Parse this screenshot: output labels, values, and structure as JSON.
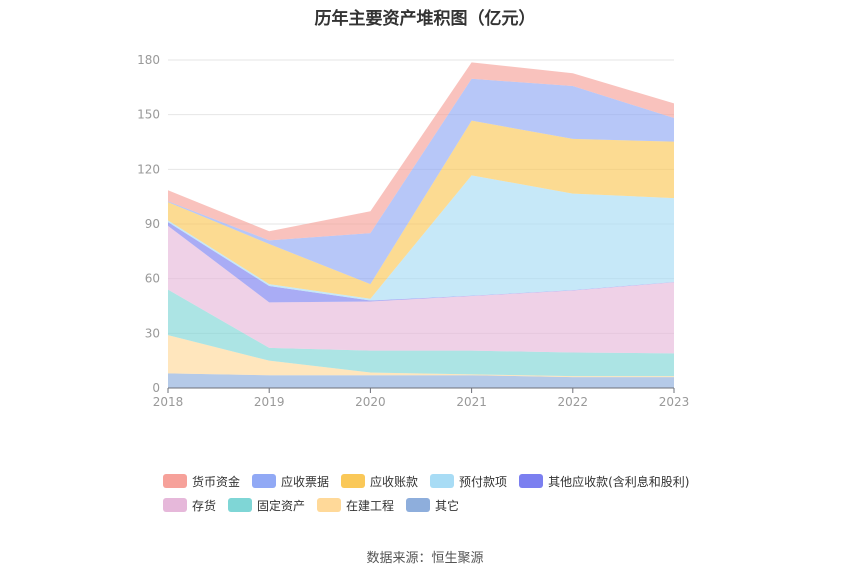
{
  "chart_data": {
    "type": "area",
    "title": "历年主要资产堆积图（亿元）",
    "categories": [
      "2018",
      "2019",
      "2020",
      "2021",
      "2022",
      "2023"
    ],
    "ylim": [
      0,
      180
    ],
    "yticks": [
      "0",
      "30",
      "60",
      "90",
      "120",
      "150",
      "180"
    ],
    "stacked": true,
    "grid": true,
    "legend_position": "bottom",
    "series": [
      {
        "name": "其它",
        "color": "#8eaedc",
        "values": [
          8,
          7,
          7,
          7,
          6,
          6
        ]
      },
      {
        "name": "在建工程",
        "color": "#ffd999",
        "values": [
          21,
          8,
          1.5,
          0.5,
          0.5,
          0.5
        ]
      },
      {
        "name": "固定资产",
        "color": "#7fd6d6",
        "values": [
          25,
          7,
          12,
          13,
          13,
          12.5
        ]
      },
      {
        "name": "存货",
        "color": "#e6b8da",
        "values": [
          35,
          25,
          27,
          30,
          34,
          39
        ]
      },
      {
        "name": "其他应收款(含利息和股利)",
        "color": "#7b7ff0",
        "values": [
          2,
          9,
          0.5,
          0.2,
          0.2,
          0.2
        ]
      },
      {
        "name": "预付款项",
        "color": "#a8dcf5",
        "values": [
          1,
          1,
          1,
          66,
          53,
          46
        ]
      },
      {
        "name": "应收账款",
        "color": "#fac858",
        "values": [
          10,
          22,
          8,
          30,
          30,
          31
        ]
      },
      {
        "name": "应收票据",
        "color": "#91a9f5",
        "values": [
          0.5,
          2,
          28,
          23,
          29,
          13
        ]
      },
      {
        "name": "货币资金",
        "color": "#f6a19a",
        "values": [
          6,
          5,
          12,
          9,
          7,
          8
        ]
      }
    ]
  },
  "legend": {
    "row1": [
      {
        "name": "货币资金",
        "color": "#f6a19a"
      },
      {
        "name": "应收票据",
        "color": "#91a9f5"
      },
      {
        "name": "应收账款",
        "color": "#fac858"
      },
      {
        "name": "预付款项",
        "color": "#a8dcf5"
      },
      {
        "name": "其他应收款(含利息和股利)",
        "color": "#7b7ff0"
      }
    ],
    "row2": [
      {
        "name": "存货",
        "color": "#e6b8da"
      },
      {
        "name": "固定资产",
        "color": "#7fd6d6"
      },
      {
        "name": "在建工程",
        "color": "#ffd999"
      },
      {
        "name": "其它",
        "color": "#8eaedc"
      }
    ]
  },
  "source": "数据来源：恒生聚源"
}
